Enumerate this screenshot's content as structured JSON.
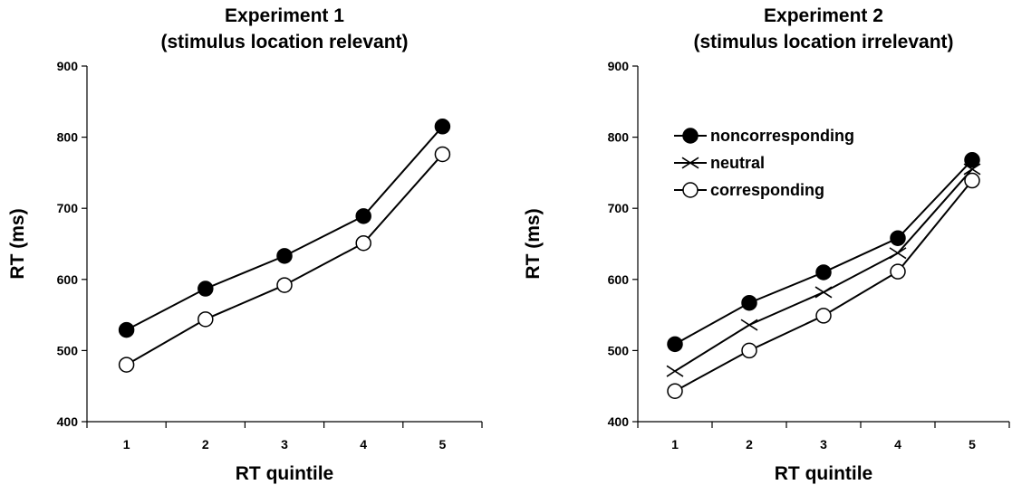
{
  "chart_data": [
    {
      "type": "line",
      "title": [
        "Experiment 1",
        "(stimulus location relevant)"
      ],
      "xlabel": "RT quintile",
      "ylabel": "RT (ms)",
      "categories": [
        "1",
        "2",
        "3",
        "4",
        "5"
      ],
      "ylim": [
        400,
        900
      ],
      "yticks": [
        "400",
        "500",
        "600",
        "700",
        "800",
        "900"
      ],
      "grid": false,
      "legend": null,
      "series": [
        {
          "name": "noncorresponding",
          "marker": "filled-circle",
          "values": [
            529,
            587,
            633,
            689,
            815
          ]
        },
        {
          "name": "corresponding",
          "marker": "open-circle",
          "values": [
            480,
            544,
            592,
            651,
            776
          ]
        }
      ]
    },
    {
      "type": "line",
      "title": [
        "Experiment 2",
        "(stimulus location irrelevant)"
      ],
      "xlabel": "RT quintile",
      "ylabel": "RT (ms)",
      "categories": [
        "1",
        "2",
        "3",
        "4",
        "5"
      ],
      "ylim": [
        400,
        900
      ],
      "yticks": [
        "400",
        "500",
        "600",
        "700",
        "800",
        "900"
      ],
      "grid": false,
      "legend": "top-left",
      "series": [
        {
          "name": "noncorresponding",
          "marker": "filled-circle",
          "values": [
            509,
            567,
            610,
            658,
            768
          ]
        },
        {
          "name": "neutral",
          "marker": "x",
          "values": [
            471,
            536,
            582,
            637,
            755
          ]
        },
        {
          "name": "corresponding",
          "marker": "open-circle",
          "values": [
            443,
            500,
            549,
            611,
            739
          ]
        }
      ]
    }
  ]
}
